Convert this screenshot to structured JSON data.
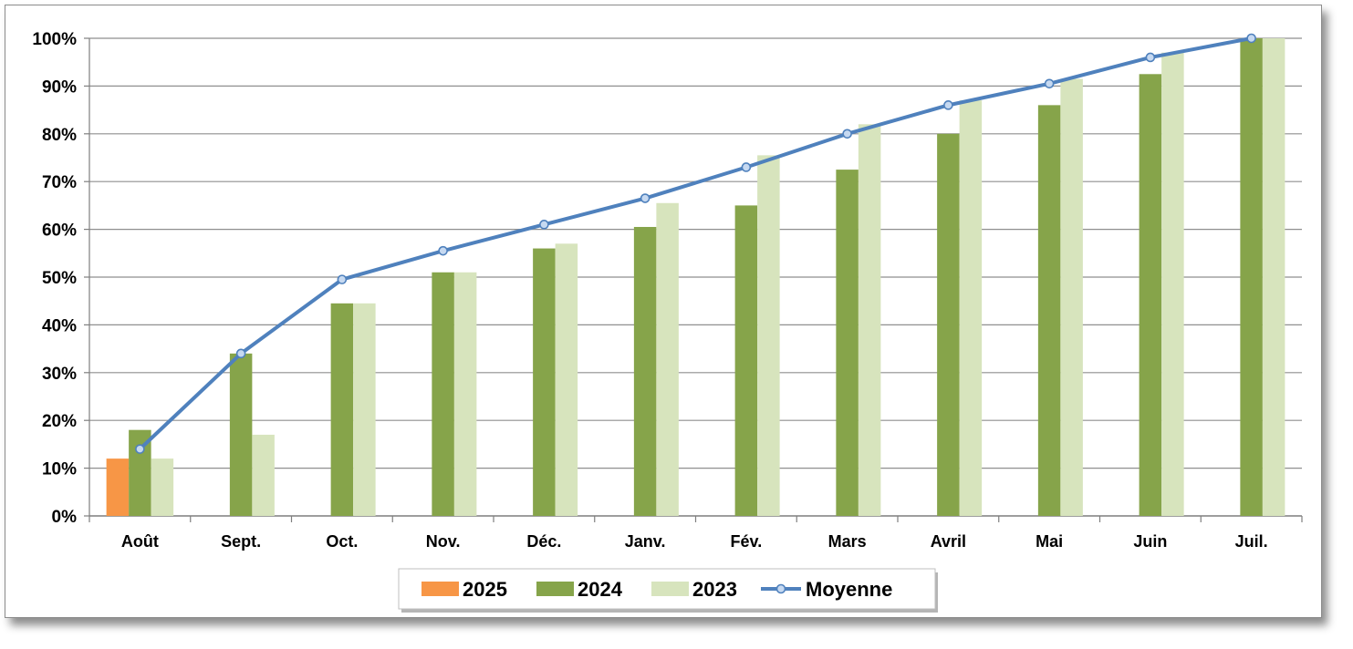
{
  "chart_data": {
    "type": "bar",
    "categories": [
      "Août",
      "Sept.",
      "Oct.",
      "Nov.",
      "Déc.",
      "Janv.",
      "Fév.",
      "Mars",
      "Avril",
      "Mai",
      "Juin",
      "Juil."
    ],
    "series": [
      {
        "name": "2025",
        "type": "bar",
        "color": "#f79646",
        "values": [
          12,
          null,
          null,
          null,
          null,
          null,
          null,
          null,
          null,
          null,
          null,
          null
        ]
      },
      {
        "name": "2024",
        "type": "bar",
        "color": "#86a44a",
        "values": [
          18,
          34,
          44.5,
          51,
          56,
          60.5,
          65,
          72.5,
          80,
          86,
          92.5,
          100
        ]
      },
      {
        "name": "2023",
        "type": "bar",
        "color": "#d7e4bd",
        "values": [
          12,
          17,
          44.5,
          51,
          57,
          65.5,
          75.5,
          82,
          87,
          91.5,
          97,
          100
        ]
      },
      {
        "name": "Moyenne",
        "type": "line",
        "color": "#4f81bd",
        "values": [
          14,
          34,
          49.5,
          55.5,
          61,
          66.5,
          73,
          80,
          86,
          90.5,
          96,
          100
        ]
      }
    ],
    "yticks": [
      "0%",
      "10%",
      "20%",
      "30%",
      "40%",
      "50%",
      "60%",
      "70%",
      "80%",
      "90%",
      "100%"
    ],
    "ylim": [
      0,
      100
    ],
    "grid": true,
    "legend_position": "bottom"
  }
}
